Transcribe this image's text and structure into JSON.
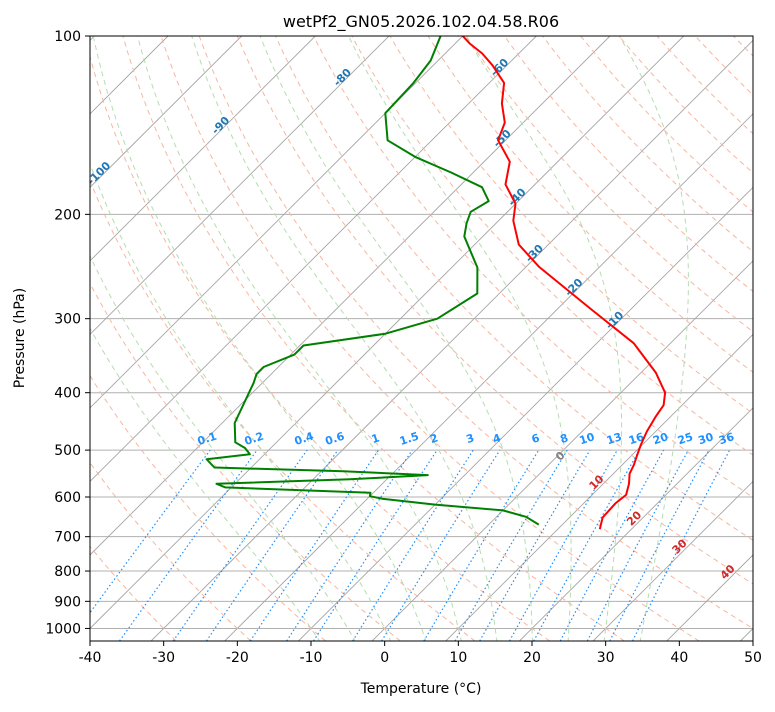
{
  "chart_data": {
    "type": "line",
    "subtype": "skew-T log-P diagram",
    "title": "wetPf2_GN05.2026.102.04.58.R06",
    "xlabel": "Temperature (°C)",
    "ylabel": "Pressure (hPa)",
    "xlim": [
      -40,
      50
    ],
    "ylim": [
      1050,
      100
    ],
    "x_ticks": [
      -40,
      -30,
      -20,
      -10,
      0,
      10,
      20,
      30,
      40,
      50
    ],
    "y_ticks": [
      100,
      200,
      300,
      400,
      500,
      600,
      700,
      800,
      900,
      1000
    ],
    "skew_slope_C_per_lnP": 35,
    "dry_adiabats_C": [
      -30,
      -20,
      -10,
      0,
      10,
      20,
      30,
      40,
      50,
      60,
      70,
      80,
      90,
      100,
      110,
      120,
      130,
      140,
      150,
      160,
      170,
      180,
      190,
      200,
      210,
      220
    ],
    "moist_adiabats_C": [
      -10,
      -5,
      0,
      5,
      10,
      15,
      20,
      25,
      30,
      35
    ],
    "isotherm_labels": [
      "-100",
      "-90",
      "-80",
      "-70",
      "-60",
      "-50",
      "-40",
      "-30",
      "-20",
      "-10",
      "0",
      "10",
      "20",
      "30",
      "40"
    ],
    "isotherm_label_values": [
      -100,
      -90,
      -80,
      -70,
      -60,
      -50,
      -40,
      -30,
      -20,
      -10,
      0,
      10,
      20,
      30,
      40
    ],
    "mixing_ratio_labels": [
      "0.1",
      "0.2",
      "0.4",
      "0.6",
      "1",
      "1.5",
      "2",
      "3",
      "4",
      "6",
      "8",
      "10",
      "13",
      "16",
      "20",
      "25",
      "30",
      "36"
    ],
    "mixing_ratio_values": [
      0.1,
      0.2,
      0.4,
      0.6,
      1,
      1.5,
      2,
      3,
      4,
      6,
      8,
      10,
      13,
      16,
      20,
      25,
      30,
      36
    ],
    "series": [
      {
        "name": "Temperature",
        "color": "#ff0000",
        "points": [
          [
            680,
            15.7
          ],
          [
            650,
            14.5
          ],
          [
            615,
            14.3
          ],
          [
            595,
            14.6
          ],
          [
            570,
            13.5
          ],
          [
            548,
            12.2
          ],
          [
            530,
            11.6
          ],
          [
            512,
            10.8
          ],
          [
            490,
            9.8
          ],
          [
            465,
            8.8
          ],
          [
            440,
            8.0
          ],
          [
            420,
            7.5
          ],
          [
            400,
            6.0
          ],
          [
            370,
            2.0
          ],
          [
            330,
            -5.0
          ],
          [
            290,
            -15.2
          ],
          [
            245,
            -28.3
          ],
          [
            225,
            -34.0
          ],
          [
            205,
            -38.0
          ],
          [
            192,
            -40.0
          ],
          [
            178,
            -44.0
          ],
          [
            163,
            -46.5
          ],
          [
            150,
            -51.0
          ],
          [
            140,
            -52.5
          ],
          [
            130,
            -55.5
          ],
          [
            120,
            -58.0
          ],
          [
            112,
            -62.0
          ],
          [
            107,
            -65.0
          ],
          [
            103,
            -68.0
          ],
          [
            100,
            -70.0
          ]
        ]
      },
      {
        "name": "Dewpoint",
        "color": "#008000",
        "points": [
          [
            668,
            6.8
          ],
          [
            648,
            4.0
          ],
          [
            632,
            0.0
          ],
          [
            618,
            -10.0
          ],
          [
            604,
            -18.0
          ],
          [
            598,
            -20.0
          ],
          [
            590,
            -20.4
          ],
          [
            578,
            -40.8
          ],
          [
            570,
            -42.5
          ],
          [
            560,
            -25.0
          ],
          [
            551,
            -15.0
          ],
          [
            543,
            -27.0
          ],
          [
            535,
            -45.0
          ],
          [
            518,
            -47.2
          ],
          [
            508,
            -42.0
          ],
          [
            496,
            -43.5
          ],
          [
            485,
            -45.6
          ],
          [
            450,
            -48.3
          ],
          [
            385,
            -51.2
          ],
          [
            372,
            -52.0
          ],
          [
            362,
            -52.0
          ],
          [
            345,
            -49.5
          ],
          [
            333,
            -49.5
          ],
          [
            318,
            -40.0
          ],
          [
            300,
            -35.0
          ],
          [
            272,
            -33.0
          ],
          [
            246,
            -36.5
          ],
          [
            218,
            -42.5
          ],
          [
            207,
            -44.0
          ],
          [
            198,
            -45.0
          ],
          [
            190,
            -44.0
          ],
          [
            180,
            -46.8
          ],
          [
            170,
            -53.0
          ],
          [
            160,
            -60.0
          ],
          [
            150,
            -66.0
          ],
          [
            135,
            -70.0
          ],
          [
            120,
            -70.3
          ],
          [
            110,
            -71.0
          ],
          [
            100,
            -73.0
          ]
        ]
      }
    ],
    "grid": true,
    "colors": {
      "isobar": "#b0b0b0",
      "skewed_isotherm": "#a5a5a5",
      "dry_adiabat": "#f7b6a0",
      "moist_adiabat": "#b5dcb1",
      "mixing_ratio": "#1e90ff",
      "isotherm_label": "#1f77b4",
      "isotherm_label_warm": "#d62728",
      "zero_label": "#808080"
    }
  }
}
